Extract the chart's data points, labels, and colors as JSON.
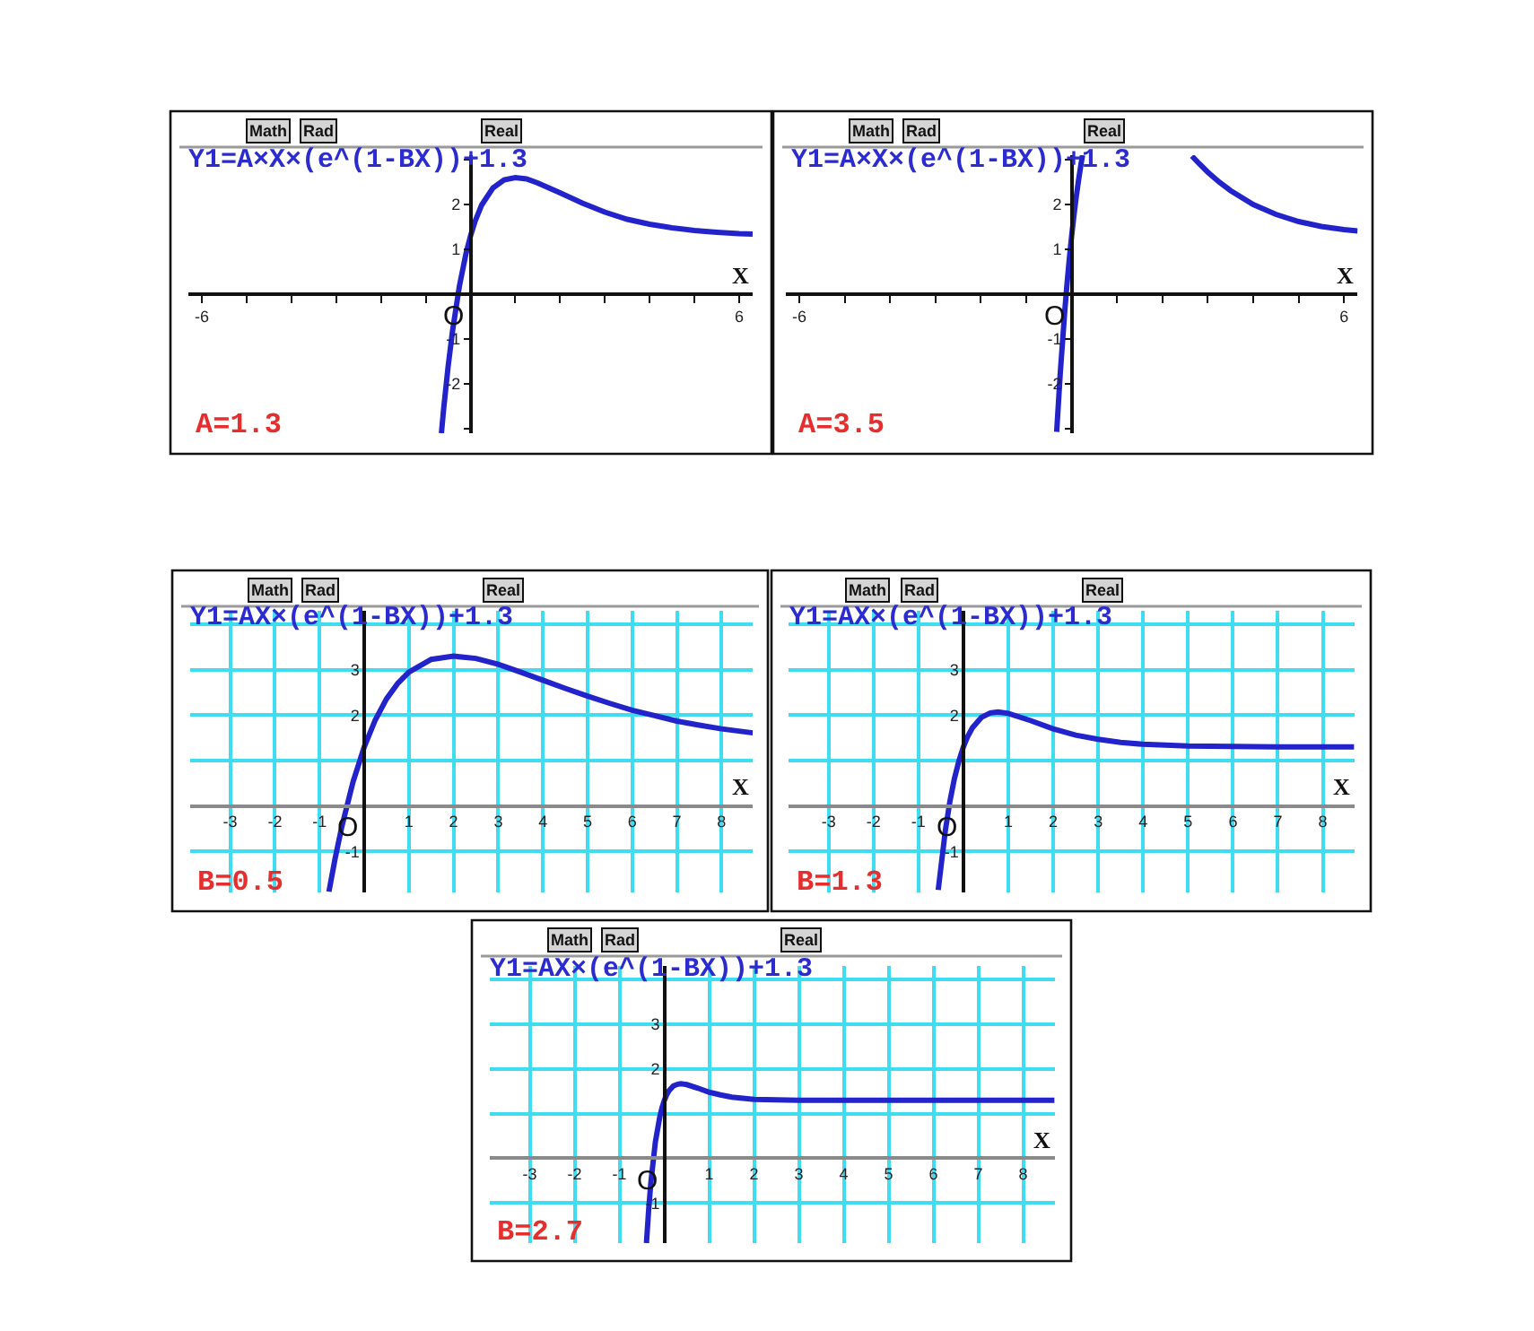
{
  "chart_data": [
    {
      "type": "line",
      "title": "Y1=A×X×(e^(1-BX))+1.3",
      "xlabel": "X",
      "annotations": [
        "A=1.3",
        "Math",
        "Rad",
        "Real",
        "O"
      ],
      "grid": false,
      "x": [
        -0.65,
        -0.6,
        -0.5,
        -0.4,
        -0.25,
        -0.1,
        0,
        0.1,
        0.25,
        0.5,
        0.75,
        1,
        1.25,
        1.5,
        2,
        2.5,
        3,
        3.5,
        4,
        4.5,
        5,
        5.5,
        6,
        6.3
      ],
      "series": [
        {
          "color": "#2323cc",
          "values": [
            -3.1,
            -2.56,
            -1.61,
            -0.81,
            0.17,
            0.91,
            1.3,
            1.62,
            1.99,
            2.37,
            2.55,
            2.6,
            2.57,
            2.48,
            2.26,
            2.03,
            1.83,
            1.67,
            1.56,
            1.48,
            1.42,
            1.38,
            1.35,
            1.34
          ]
        }
      ],
      "xlim": [
        -6.3,
        6.3
      ],
      "ylim": [
        -3.1,
        3.1
      ],
      "xticks": [
        -6,
        {
          "value": -5,
          "label": null
        },
        {
          "value": -4,
          "label": null
        },
        {
          "value": -3,
          "label": null
        },
        {
          "value": -2,
          "label": null
        },
        {
          "value": -1,
          "label": null
        },
        {
          "value": 1,
          "label": null
        },
        {
          "value": 2,
          "label": null
        },
        {
          "value": 3,
          "label": null
        },
        {
          "value": 4,
          "label": null
        },
        {
          "value": 5,
          "label": null
        },
        6
      ],
      "yticks": [
        {
          "value": -3,
          "label": null
        },
        -2,
        -1,
        1,
        2,
        {
          "value": 3,
          "label": null
        }
      ]
    },
    {
      "type": "line",
      "title": "Y1=A×X×(e^(1-BX))+1.3",
      "xlabel": "X",
      "annotations": [
        "A=3.5",
        "Math",
        "Rad",
        "Real",
        "O"
      ],
      "grid": false,
      "x": [
        -0.33,
        -0.25,
        -0.15,
        -0.1,
        -0.05,
        0,
        0.05,
        0.1,
        0.15,
        0.2,
        0.24,
        1,
        2.65,
        2.8,
        3,
        3.25,
        3.5,
        4,
        4.5,
        5,
        5.5,
        6,
        6.3
      ],
      "series": [
        {
          "color": "#2323cc",
          "values": [
            -3.07,
            -1.75,
            -0.36,
            0.25,
            0.8,
            1.3,
            1.75,
            2.16,
            2.53,
            2.86,
            3.1,
            null,
            3.08,
            2.92,
            2.72,
            2.5,
            2.31,
            2.0,
            1.78,
            1.62,
            1.51,
            1.44,
            1.41
          ]
        }
      ],
      "xlim": [
        -6.3,
        6.3
      ],
      "ylim": [
        -3.1,
        3.1
      ],
      "xticks": [
        -6,
        {
          "value": -5,
          "label": null
        },
        {
          "value": -4,
          "label": null
        },
        {
          "value": -3,
          "label": null
        },
        {
          "value": -2,
          "label": null
        },
        {
          "value": -1,
          "label": null
        },
        {
          "value": 1,
          "label": null
        },
        {
          "value": 2,
          "label": null
        },
        {
          "value": 3,
          "label": null
        },
        {
          "value": 4,
          "label": null
        },
        {
          "value": 5,
          "label": null
        },
        6
      ],
      "yticks": [
        {
          "value": -3,
          "label": null
        },
        -2,
        -1,
        1,
        2,
        {
          "value": 3,
          "label": null
        }
      ]
    },
    {
      "type": "line",
      "title": "Y1=AX×(e^(1-BX))+1.3",
      "xlabel": "X",
      "annotations": [
        "B=0.5",
        "Math",
        "Rad",
        "Real",
        "O"
      ],
      "grid": true,
      "x": [
        -0.79,
        -0.65,
        -0.5,
        -0.25,
        0,
        0.25,
        0.5,
        0.75,
        1,
        1.5,
        2,
        2.5,
        3,
        3.5,
        4,
        4.5,
        5,
        5.5,
        6,
        6.5,
        7,
        7.5,
        8,
        8.7
      ],
      "series": [
        {
          "color": "#2323cc",
          "values": [
            -1.89,
            -1.15,
            -0.45,
            0.53,
            1.3,
            1.9,
            2.36,
            2.7,
            2.95,
            3.23,
            3.3,
            3.25,
            3.12,
            2.95,
            2.77,
            2.59,
            2.42,
            2.26,
            2.11,
            1.99,
            1.87,
            1.78,
            1.7,
            1.61
          ]
        }
      ],
      "xlim": [
        -3.9,
        8.7
      ],
      "ylim": [
        -1.9,
        4.3
      ],
      "xticks": [
        -3,
        -2,
        -1,
        1,
        2,
        3,
        4,
        5,
        6,
        7,
        8
      ],
      "yticks": [
        -1,
        {
          "value": 1,
          "label": null
        },
        2,
        3,
        {
          "value": 4,
          "label": null
        }
      ]
    },
    {
      "type": "line",
      "title": "Y1=AX×(e^(1-BX))+1.3",
      "xlabel": "X",
      "annotations": [
        "B=1.3",
        "Math",
        "Rad",
        "Real",
        "O"
      ],
      "grid": true,
      "x": [
        -0.56,
        -0.4,
        -0.3,
        -0.2,
        -0.1,
        0,
        0.1,
        0.2,
        0.4,
        0.6,
        0.77,
        1,
        1.5,
        2,
        2.5,
        3,
        3.5,
        4,
        5,
        6,
        7,
        8.7
      ],
      "series": [
        {
          "color": "#2323cc",
          "values": [
            -1.85,
            -0.53,
            0.1,
            0.6,
            0.99,
            1.3,
            1.54,
            1.72,
            1.95,
            2.05,
            2.07,
            2.04,
            1.88,
            1.7,
            1.56,
            1.47,
            1.4,
            1.36,
            1.32,
            1.31,
            1.3,
            1.3
          ]
        }
      ],
      "xlim": [
        -3.9,
        8.7
      ],
      "ylim": [
        -1.9,
        4.3
      ],
      "xticks": [
        -3,
        -2,
        -1,
        1,
        2,
        3,
        4,
        5,
        6,
        7,
        8
      ],
      "yticks": [
        -1,
        {
          "value": 1,
          "label": null
        },
        2,
        3,
        {
          "value": 4,
          "label": null
        }
      ]
    },
    {
      "type": "line",
      "title": "Y1=AX×(e^(1-BX))+1.3",
      "xlabel": "X",
      "annotations": [
        "B=2.7",
        "Math",
        "Rad",
        "Real",
        "O"
      ],
      "grid": true,
      "x": [
        -0.4,
        -0.35,
        -0.3,
        -0.2,
        -0.1,
        -0.05,
        0,
        0.05,
        0.1,
        0.2,
        0.3,
        0.37,
        0.5,
        0.75,
        1,
        1.25,
        1.5,
        2,
        3,
        5,
        8.7
      ],
      "series": [
        {
          "color": "#2323cc",
          "values": [
            -1.9,
            -1.15,
            -0.53,
            0.37,
            0.94,
            1.14,
            1.3,
            1.42,
            1.51,
            1.62,
            1.66,
            1.67,
            1.65,
            1.57,
            1.48,
            1.42,
            1.37,
            1.32,
            1.3,
            1.3,
            1.3
          ]
        }
      ],
      "xlim": [
        -3.9,
        8.7
      ],
      "ylim": [
        -1.9,
        4.3
      ],
      "xticks": [
        -3,
        -2,
        -1,
        1,
        2,
        3,
        4,
        5,
        6,
        7,
        8
      ],
      "yticks": [
        -1,
        {
          "value": 1,
          "label": null
        },
        2,
        3,
        {
          "value": 4,
          "label": null
        }
      ]
    }
  ]
}
